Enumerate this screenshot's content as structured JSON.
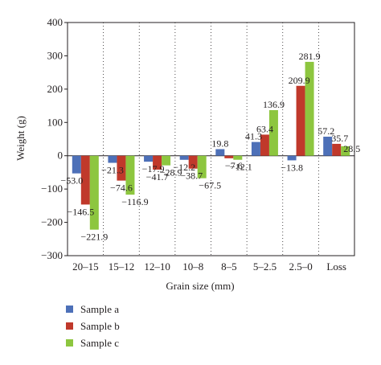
{
  "chart_data": {
    "type": "bar",
    "categories": [
      "20–15",
      "15–12",
      "12–10",
      "10–8",
      "8–5",
      "5–2.5",
      "2.5–0",
      "Loss"
    ],
    "series": [
      {
        "name": "Sample a",
        "color": "#4d70b8",
        "values": [
          -53.0,
          -21.3,
          -17.9,
          -12.2,
          19.8,
          41.3,
          -13.8,
          57.2
        ],
        "labels": [
          "−53.0",
          "−21.3",
          "−17.9",
          "−12.2",
          "19.8",
          "41.3",
          "−13.8",
          "57.2"
        ]
      },
      {
        "name": "Sample b",
        "color": "#c0392b",
        "values": [
          -146.5,
          -74.6,
          -41.7,
          -38.7,
          -7.6,
          63.4,
          209.9,
          35.7
        ],
        "labels": [
          "−146.5",
          "−74.6",
          "−41.7",
          "−38.7",
          "−7.6",
          "63.4",
          "209.9",
          "35.7"
        ]
      },
      {
        "name": "Sample c",
        "color": "#8dc63f",
        "values": [
          -221.9,
          -116.9,
          -28.9,
          -67.5,
          -12.1,
          136.9,
          281.9,
          28.5
        ],
        "labels": [
          "−221.9",
          "−116.9",
          "−28.9",
          "−67.5",
          "−12.1",
          "136.9",
          "281.9",
          "28.5"
        ]
      }
    ],
    "xlabel": "Grain size (mm)",
    "ylabel": "Weight (g)",
    "ylim": [
      -300,
      400
    ],
    "yticks": [
      400,
      300,
      200,
      100,
      0,
      -100,
      -200,
      -300
    ],
    "ytick_labels": [
      "400",
      "300",
      "200",
      "100",
      "0",
      "−100",
      "−200",
      "−300"
    ],
    "legend_position": "bottom-left",
    "category_separators": "dotted",
    "grid": false
  }
}
